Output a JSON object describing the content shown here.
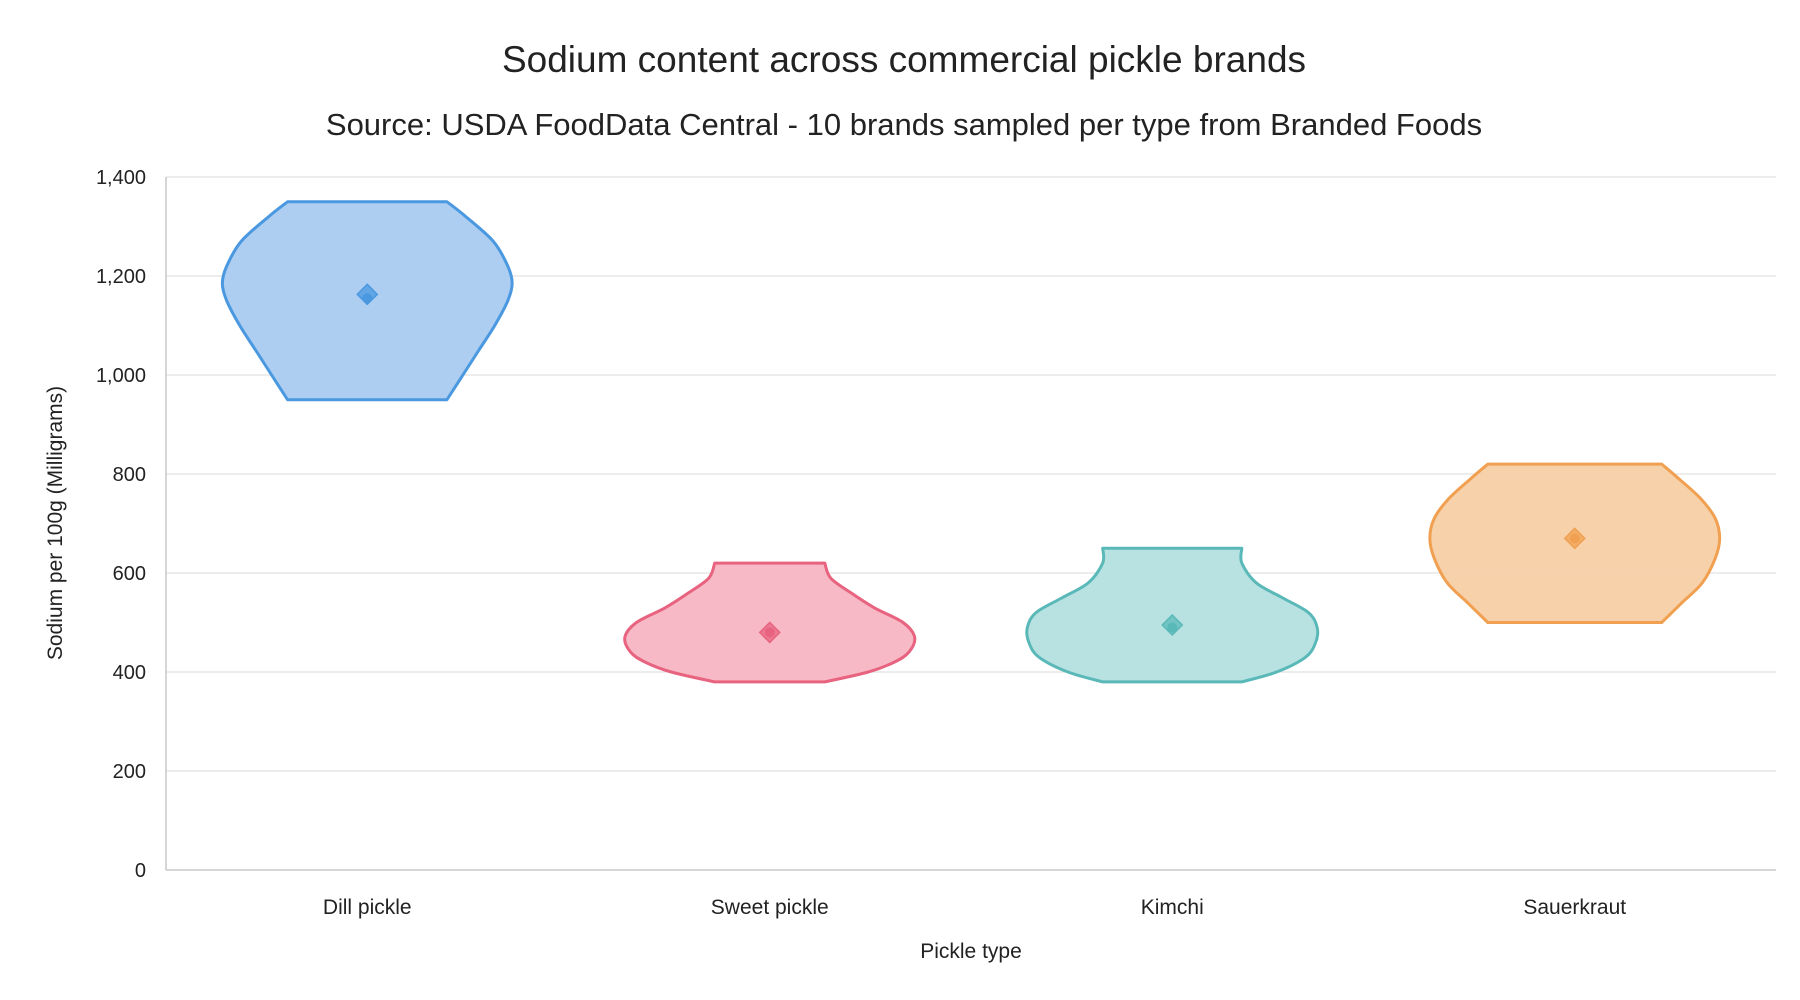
{
  "chart_data": {
    "type": "violin",
    "title": "Sodium content across commercial pickle brands",
    "subtitle": "Source: USDA FoodData Central - 10 brands sampled per type from Branded Foods",
    "xlabel": "Pickle type",
    "ylabel": "Sodium per 100g (Milligrams)",
    "ylim": [
      0,
      1400
    ],
    "yticks": [
      0,
      200,
      400,
      600,
      800,
      1000,
      1200,
      1400
    ],
    "ytick_labels": [
      "0",
      "200",
      "400",
      "600",
      "800",
      "1,000",
      "1,200",
      "1,400"
    ],
    "grid": true,
    "categories": [
      "Dill pickle",
      "Sweet pickle",
      "Kimchi",
      "Sauerkraut"
    ],
    "series": [
      {
        "category": "Dill pickle",
        "color": "#4a98e0",
        "fill": "#a9cbf0",
        "min": 950,
        "max": 1350,
        "mean": 1163,
        "median": 1155,
        "density": [
          [
            950,
            0.55
          ],
          [
            1000,
            0.66
          ],
          [
            1050,
            0.77
          ],
          [
            1100,
            0.88
          ],
          [
            1150,
            0.97
          ],
          [
            1185,
            1.0
          ],
          [
            1220,
            0.97
          ],
          [
            1270,
            0.87
          ],
          [
            1320,
            0.68
          ],
          [
            1350,
            0.55
          ]
        ]
      },
      {
        "category": "Sweet pickle",
        "color": "#e8637f",
        "fill": "#f7b5c2",
        "min": 380,
        "max": 620,
        "mean": 480,
        "median": 480,
        "density": [
          [
            380,
            0.38
          ],
          [
            400,
            0.68
          ],
          [
            420,
            0.86
          ],
          [
            440,
            0.96
          ],
          [
            470,
            1.0
          ],
          [
            500,
            0.92
          ],
          [
            530,
            0.72
          ],
          [
            560,
            0.56
          ],
          [
            590,
            0.42
          ],
          [
            620,
            0.38
          ]
        ]
      },
      {
        "category": "Kimchi",
        "color": "#5ab9b8",
        "fill": "#b3e0df",
        "min": 380,
        "max": 650,
        "mean": 495,
        "median": 490,
        "density": [
          [
            380,
            0.48
          ],
          [
            400,
            0.72
          ],
          [
            430,
            0.92
          ],
          [
            460,
            0.99
          ],
          [
            490,
            1.0
          ],
          [
            520,
            0.94
          ],
          [
            550,
            0.76
          ],
          [
            580,
            0.58
          ],
          [
            620,
            0.48
          ],
          [
            650,
            0.48
          ]
        ]
      },
      {
        "category": "Sauerkraut",
        "color": "#f0a050",
        "fill": "#f7cfa5",
        "min": 500,
        "max": 820,
        "mean": 670,
        "median": 670,
        "density": [
          [
            500,
            0.6
          ],
          [
            540,
            0.74
          ],
          [
            580,
            0.88
          ],
          [
            630,
            0.97
          ],
          [
            670,
            1.0
          ],
          [
            710,
            0.97
          ],
          [
            750,
            0.87
          ],
          [
            790,
            0.72
          ],
          [
            820,
            0.6
          ]
        ]
      }
    ]
  }
}
